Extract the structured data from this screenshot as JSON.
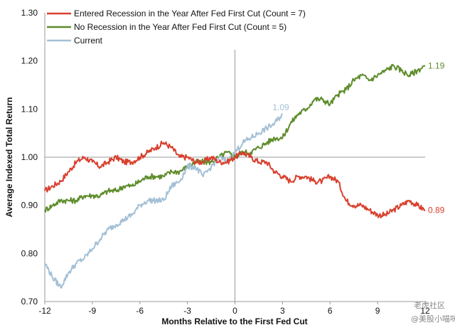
{
  "chart_data": {
    "type": "line",
    "xlabel": "Months Relative to the First Fed Cut",
    "ylabel": "Average Indexed Total Return",
    "xlim": [
      -12,
      12
    ],
    "ylim": [
      0.7,
      1.3
    ],
    "x_ticks": [
      "-12",
      "-9",
      "-6",
      "-3",
      "0",
      "3",
      "6",
      "9",
      "12"
    ],
    "y_ticks": [
      "0.70",
      "0.80",
      "0.90",
      "1.00",
      "1.10",
      "1.20",
      "1.30"
    ],
    "reference_lines": {
      "x": 0,
      "y": 1.0
    },
    "legend_position": "top-left",
    "series": [
      {
        "name": "Entered Recession in the Year After Fed First Cut (Count = 7)",
        "color": "#d9402e",
        "end_label": "0.89",
        "points": [
          [
            -12,
            0.93
          ],
          [
            -11.5,
            0.94
          ],
          [
            -11,
            0.95
          ],
          [
            -10.5,
            0.97
          ],
          [
            -10,
            0.99
          ],
          [
            -9.5,
            1.0
          ],
          [
            -9,
            0.99
          ],
          [
            -8.5,
            0.98
          ],
          [
            -8,
            0.99
          ],
          [
            -7.5,
            1.0
          ],
          [
            -7,
            0.99
          ],
          [
            -6.5,
            0.99
          ],
          [
            -6,
            1.0
          ],
          [
            -5.5,
            1.01
          ],
          [
            -5,
            1.02
          ],
          [
            -4.5,
            1.03
          ],
          [
            -4,
            1.02
          ],
          [
            -3.5,
            1.0
          ],
          [
            -3,
            1.0
          ],
          [
            -2.5,
            0.99
          ],
          [
            -2,
            0.99
          ],
          [
            -1.5,
            1.0
          ],
          [
            -1,
            0.99
          ],
          [
            -0.5,
            0.99
          ],
          [
            0,
            1.0
          ],
          [
            0.5,
            1.01
          ],
          [
            1,
            1.0
          ],
          [
            1.5,
            0.99
          ],
          [
            2,
            0.99
          ],
          [
            2.5,
            0.97
          ],
          [
            3,
            0.96
          ],
          [
            3.5,
            0.95
          ],
          [
            4,
            0.96
          ],
          [
            4.5,
            0.96
          ],
          [
            5,
            0.95
          ],
          [
            5.5,
            0.95
          ],
          [
            6,
            0.96
          ],
          [
            6.5,
            0.95
          ],
          [
            7,
            0.91
          ],
          [
            7.5,
            0.9
          ],
          [
            8,
            0.9
          ],
          [
            8.5,
            0.89
          ],
          [
            9,
            0.88
          ],
          [
            9.5,
            0.88
          ],
          [
            10,
            0.89
          ],
          [
            10.5,
            0.9
          ],
          [
            11,
            0.91
          ],
          [
            11.5,
            0.9
          ],
          [
            12,
            0.89
          ]
        ]
      },
      {
        "name": "No Recession in the Year After Fed First Cut (Count = 5)",
        "color": "#5e8c2b",
        "end_label": "1.19",
        "points": [
          [
            -12,
            0.89
          ],
          [
            -11.5,
            0.9
          ],
          [
            -11,
            0.91
          ],
          [
            -10.5,
            0.91
          ],
          [
            -10,
            0.91
          ],
          [
            -9.5,
            0.92
          ],
          [
            -9,
            0.92
          ],
          [
            -8.5,
            0.92
          ],
          [
            -8,
            0.93
          ],
          [
            -7.5,
            0.93
          ],
          [
            -7,
            0.94
          ],
          [
            -6.5,
            0.94
          ],
          [
            -6,
            0.95
          ],
          [
            -5.5,
            0.96
          ],
          [
            -5,
            0.96
          ],
          [
            -4.5,
            0.96
          ],
          [
            -4,
            0.97
          ],
          [
            -3.5,
            0.97
          ],
          [
            -3,
            0.98
          ],
          [
            -2.5,
            0.99
          ],
          [
            -2,
            0.99
          ],
          [
            -1.5,
            0.99
          ],
          [
            -1,
            1.0
          ],
          [
            -0.5,
            1.01
          ],
          [
            0,
            1.0
          ],
          [
            0.5,
            1.01
          ],
          [
            1,
            1.01
          ],
          [
            1.5,
            1.02
          ],
          [
            2,
            1.03
          ],
          [
            2.5,
            1.04
          ],
          [
            3,
            1.04
          ],
          [
            3.5,
            1.07
          ],
          [
            4,
            1.09
          ],
          [
            4.5,
            1.1
          ],
          [
            5,
            1.12
          ],
          [
            5.5,
            1.12
          ],
          [
            6,
            1.11
          ],
          [
            6.5,
            1.13
          ],
          [
            7,
            1.14
          ],
          [
            7.5,
            1.16
          ],
          [
            8,
            1.17
          ],
          [
            8.5,
            1.16
          ],
          [
            9,
            1.17
          ],
          [
            9.5,
            1.18
          ],
          [
            10,
            1.19
          ],
          [
            10.5,
            1.18
          ],
          [
            11,
            1.17
          ],
          [
            11.5,
            1.18
          ],
          [
            12,
            1.19
          ]
        ]
      },
      {
        "name": "Current",
        "color": "#a3c0d6",
        "end_label": "1.09",
        "points": [
          [
            -12,
            0.78
          ],
          [
            -11.5,
            0.75
          ],
          [
            -11,
            0.73
          ],
          [
            -10.5,
            0.76
          ],
          [
            -10,
            0.78
          ],
          [
            -9.5,
            0.79
          ],
          [
            -9,
            0.81
          ],
          [
            -8.5,
            0.83
          ],
          [
            -8,
            0.85
          ],
          [
            -7.5,
            0.86
          ],
          [
            -7,
            0.87
          ],
          [
            -6.5,
            0.88
          ],
          [
            -6,
            0.9
          ],
          [
            -5.5,
            0.91
          ],
          [
            -5,
            0.91
          ],
          [
            -4.5,
            0.91
          ],
          [
            -4,
            0.94
          ],
          [
            -3.5,
            0.95
          ],
          [
            -3,
            0.98
          ],
          [
            -2.5,
            0.98
          ],
          [
            -2,
            0.96
          ],
          [
            -1.5,
            0.98
          ],
          [
            -1,
            1.0
          ],
          [
            -0.5,
            0.99
          ],
          [
            0,
            1.01
          ],
          [
            0.5,
            1.03
          ],
          [
            1,
            1.04
          ],
          [
            1.5,
            1.05
          ],
          [
            2,
            1.06
          ],
          [
            2.5,
            1.07
          ],
          [
            3,
            1.09
          ]
        ]
      }
    ]
  },
  "watermark": {
    "line1": "老虎社区",
    "line2": "@美股小喵咪"
  }
}
